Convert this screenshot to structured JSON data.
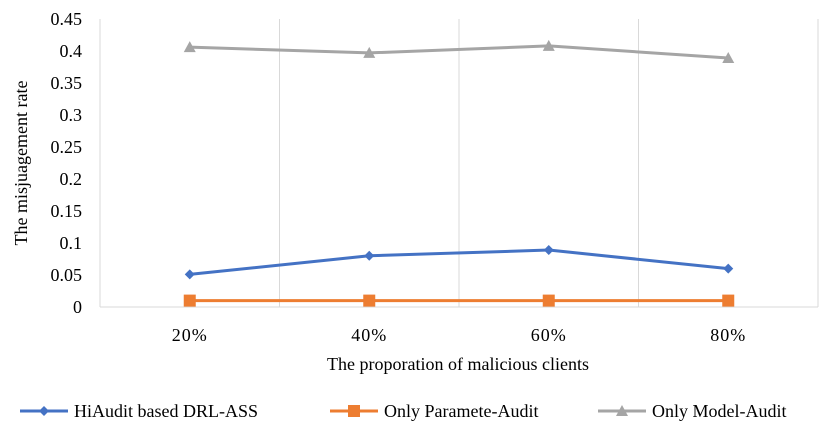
{
  "chart_data": {
    "type": "line",
    "title": "",
    "xlabel": "The proporation of malicious clients",
    "ylabel": "The misjuagement rate",
    "categories": [
      "20%",
      "40%",
      "60%",
      "80%"
    ],
    "ylim": [
      0,
      0.45
    ],
    "yticks": [
      0,
      0.05,
      0.1,
      0.15,
      0.2,
      0.25,
      0.3,
      0.35,
      0.4,
      0.45
    ],
    "ytick_labels": [
      "0",
      "0.05",
      "0.1",
      "0.15",
      "0.2",
      "0.25",
      "0.3",
      "0.35",
      "0.4",
      "0.45"
    ],
    "grid": "vertical",
    "legend_position": "bottom",
    "series": [
      {
        "name": "HiAudit based DRL-ASS",
        "values": [
          0.051,
          0.08,
          0.089,
          0.06
        ],
        "color": "#4472C4",
        "marker": "diamond"
      },
      {
        "name": "Only Paramete-Audit",
        "values": [
          0.01,
          0.01,
          0.01,
          0.01
        ],
        "color": "#ED7D31",
        "marker": "square"
      },
      {
        "name": "Only Model-Audit",
        "values": [
          0.406,
          0.397,
          0.408,
          0.389
        ],
        "color": "#A5A5A5",
        "marker": "triangle"
      }
    ]
  }
}
